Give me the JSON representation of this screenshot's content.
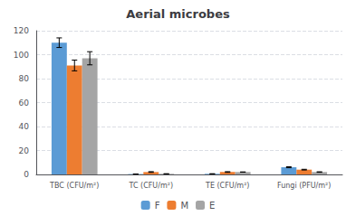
{
  "chart_data": {
    "type": "bar",
    "title": "Aerial microbes",
    "categories": [
      "TBC (CFU/m²)",
      "TC (CFU/m²)",
      "TE (CFU/m²)",
      "Fungi (PFU/m²)"
    ],
    "series": [
      {
        "name": "F",
        "color": "#5B9BD5",
        "values": [
          110,
          0.3,
          0.5,
          6.0
        ],
        "errors": [
          4.0,
          0.0,
          0.0,
          0.4
        ]
      },
      {
        "name": "M",
        "color": "#ED7D31",
        "values": [
          91,
          2.0,
          2.0,
          4.0
        ],
        "errors": [
          4.5,
          0.3,
          0.3,
          0.3
        ]
      },
      {
        "name": "E",
        "color": "#A5A5A5",
        "values": [
          97,
          0.5,
          2.0,
          2.0
        ],
        "errors": [
          5.5,
          0.0,
          0.0,
          0.2
        ]
      }
    ],
    "ylim": [
      0,
      120
    ],
    "yticks": [
      0,
      20,
      40,
      60,
      80,
      100,
      120
    ],
    "grid": true,
    "legend": "bottom"
  }
}
